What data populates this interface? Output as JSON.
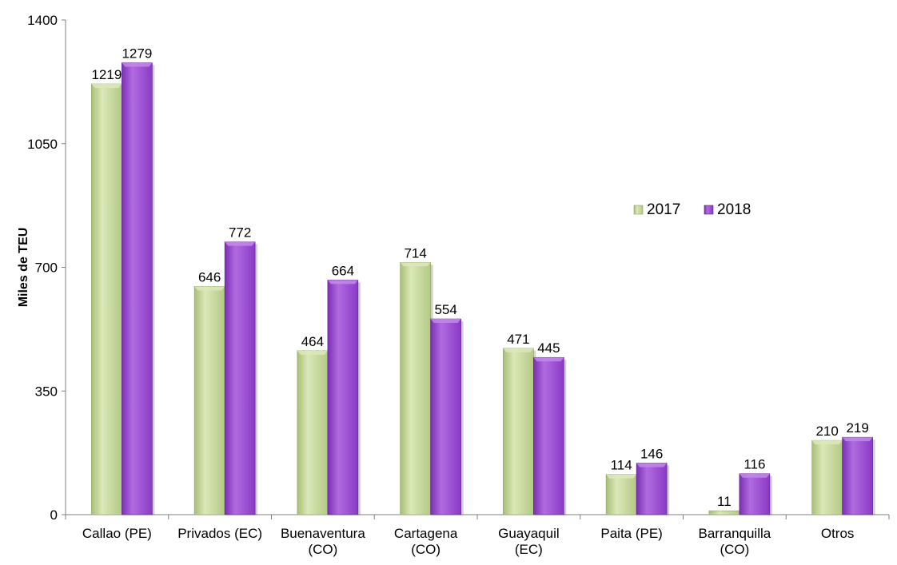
{
  "chart_data": {
    "type": "bar",
    "title": "",
    "xlabel": "",
    "ylabel": "Miles de TEU",
    "ylim": [
      0,
      1400
    ],
    "yticks": [
      0,
      350,
      700,
      1050,
      1400
    ],
    "grid": false,
    "legend_position": "right",
    "categories": [
      [
        "Callao (PE)"
      ],
      [
        "Privados (EC)"
      ],
      [
        "Buenaventura",
        "(CO)"
      ],
      [
        "Cartagena",
        "(CO)"
      ],
      [
        "Guayaquil",
        "(EC)"
      ],
      [
        "Paita (PE)"
      ],
      [
        "Barranquilla",
        "(CO)"
      ],
      [
        "Otros"
      ]
    ],
    "series": [
      {
        "name": "2017",
        "color": "#c4d79b",
        "values": [
          1219,
          646,
          464,
          714,
          471,
          114,
          11,
          210
        ]
      },
      {
        "name": "2018",
        "color": "#9b4fd0",
        "values": [
          1279,
          772,
          664,
          554,
          445,
          146,
          116,
          219
        ]
      }
    ]
  }
}
